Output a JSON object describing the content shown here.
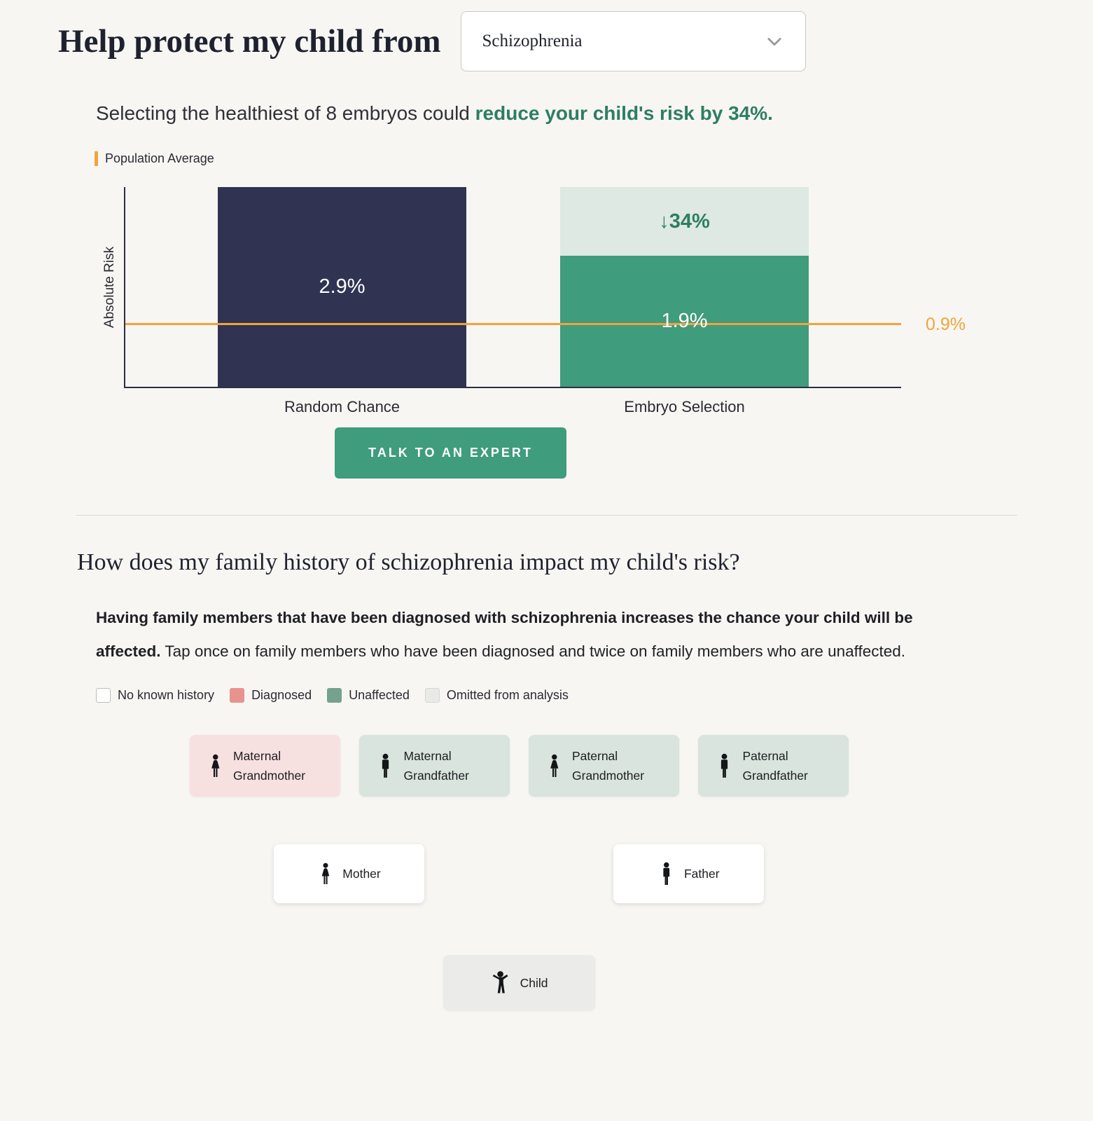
{
  "header": {
    "title": "Help protect my child from",
    "condition_dropdown": {
      "selected": "Schizophrenia"
    }
  },
  "risk_section": {
    "subtitle_prefix": "Selecting the healthiest of 8 embryos could ",
    "subtitle_highlight": "reduce your child's risk by 34%.",
    "population_average_legend": "Population Average",
    "cta_label": "TALK TO AN EXPERT"
  },
  "chart_data": {
    "type": "bar",
    "categories": [
      "Random Chance",
      "Embryo Selection"
    ],
    "values": [
      2.9,
      1.9
    ],
    "bar_labels": [
      "2.9%",
      "1.9%"
    ],
    "reduction_label": "↓34%",
    "population_average": 0.9,
    "population_average_label": "0.9%",
    "ylabel": "Absolute Risk",
    "ylim": [
      0,
      2.9
    ],
    "grid": false,
    "colors": {
      "random_chance_bar": "#303452",
      "embryo_selection_bar": "#3f9c7c",
      "reduction_area": "#dde9e2",
      "population_line": "#f2a33c"
    }
  },
  "family_section": {
    "heading": "How does my family history of schizophrenia impact my child's risk?",
    "description_bold": "Having family members that have been diagnosed with schizophrenia increases the chance your child will be affected.",
    "description_rest": " Tap once on family members who have been diagnosed and twice on family members who are unaffected.",
    "legend": [
      {
        "label": "No known history",
        "color": "#ffffff"
      },
      {
        "label": "Diagnosed",
        "color": "#e8938e"
      },
      {
        "label": "Unaffected",
        "color": "#74a28f"
      },
      {
        "label": "Omitted from analysis",
        "color": "#e9e9e7"
      }
    ],
    "members": {
      "grandparents": [
        {
          "line1": "Maternal",
          "line2": "Grandmother",
          "status": "diagnosed"
        },
        {
          "line1": "Maternal",
          "line2": "Grandfather",
          "status": "unaffected"
        },
        {
          "line1": "Paternal",
          "line2": "Grandmother",
          "status": "unaffected"
        },
        {
          "line1": "Paternal",
          "line2": "Grandfather",
          "status": "unaffected"
        }
      ],
      "parents": [
        {
          "label": "Mother",
          "status": "none"
        },
        {
          "label": "Father",
          "status": "none"
        }
      ],
      "child": {
        "label": "Child",
        "status": "omitted"
      }
    }
  }
}
